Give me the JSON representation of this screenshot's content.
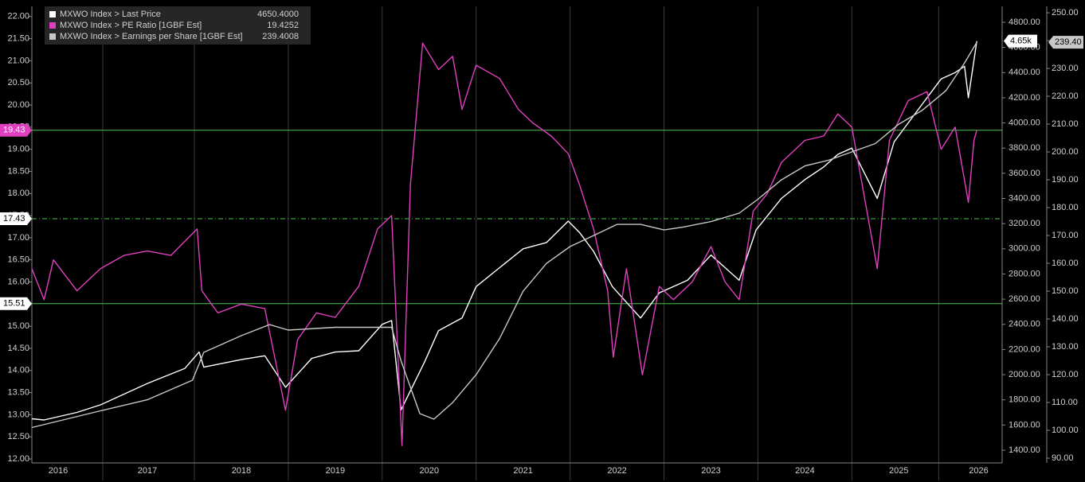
{
  "chart_data": {
    "type": "line",
    "xlim": [
      2016.27,
      2026.6
    ],
    "xticks": [
      {
        "value": 2016.55,
        "label": "2016"
      },
      {
        "value": 2017.5,
        "label": "2017"
      },
      {
        "value": 2018.5,
        "label": "2018"
      },
      {
        "value": 2019.5,
        "label": "2019"
      },
      {
        "value": 2020.5,
        "label": "2020"
      },
      {
        "value": 2021.5,
        "label": "2021"
      },
      {
        "value": 2022.5,
        "label": "2022"
      },
      {
        "value": 2023.5,
        "label": "2023"
      },
      {
        "value": 2024.5,
        "label": "2024"
      },
      {
        "value": 2025.5,
        "label": "2025"
      },
      {
        "value": 2026.35,
        "label": "2026"
      }
    ],
    "ylim": [
      11.91,
      22.23
    ],
    "yticks": [
      {
        "value": 12,
        "label": "12.00"
      },
      {
        "value": 12.5,
        "label": "12.50"
      },
      {
        "value": 13,
        "label": "13.00"
      },
      {
        "value": 13.5,
        "label": "13.50"
      },
      {
        "value": 14,
        "label": "14.00"
      },
      {
        "value": 14.5,
        "label": "14.50"
      },
      {
        "value": 15,
        "label": "15.00"
      },
      {
        "value": 15.5,
        "label": "15.50"
      },
      {
        "value": 16,
        "label": "16.00"
      },
      {
        "value": 16.5,
        "label": "16.50"
      },
      {
        "value": 17,
        "label": "17.00"
      },
      {
        "value": 17.5,
        "label": "17.50"
      },
      {
        "value": 18,
        "label": "18.00"
      },
      {
        "value": 18.5,
        "label": "18.50"
      },
      {
        "value": 19,
        "label": "19.00"
      },
      {
        "value": 19.5,
        "label": "19.50"
      },
      {
        "value": 20,
        "label": "20.00"
      },
      {
        "value": 20.5,
        "label": "20.50"
      },
      {
        "value": 21,
        "label": "21.00"
      },
      {
        "value": 21.5,
        "label": "21.50"
      },
      {
        "value": 22,
        "label": "22.00"
      }
    ],
    "y2lim": [
      1299,
      4926
    ],
    "y2ticks": [
      {
        "value": 1400,
        "label": "1400.00"
      },
      {
        "value": 1600,
        "label": "1600.00"
      },
      {
        "value": 1800,
        "label": "1800.00"
      },
      {
        "value": 2000,
        "label": "2000.00"
      },
      {
        "value": 2200,
        "label": "2200.00"
      },
      {
        "value": 2400,
        "label": "2400.00"
      },
      {
        "value": 2600,
        "label": "2600.00"
      },
      {
        "value": 2800,
        "label": "2800.00"
      },
      {
        "value": 3000,
        "label": "3000.00"
      },
      {
        "value": 3200,
        "label": "3200.00"
      },
      {
        "value": 3400,
        "label": "3400.00"
      },
      {
        "value": 3600,
        "label": "3600.00"
      },
      {
        "value": 3800,
        "label": "3800.00"
      },
      {
        "value": 4000,
        "label": "4000.00"
      },
      {
        "value": 4200,
        "label": "4200.00"
      },
      {
        "value": 4400,
        "label": "4400.00"
      },
      {
        "value": 4600,
        "label": "4600.00"
      },
      {
        "value": 4800,
        "label": "4800.00"
      }
    ],
    "y3lim": [
      88.3,
      252.3
    ],
    "y3ticks": [
      {
        "value": 90,
        "label": "90.00"
      },
      {
        "value": 100,
        "label": "100.00"
      },
      {
        "value": 110,
        "label": "110.00"
      },
      {
        "value": 120,
        "label": "120.00"
      },
      {
        "value": 130,
        "label": "130.00"
      },
      {
        "value": 140,
        "label": "140.00"
      },
      {
        "value": 150,
        "label": "150.00"
      },
      {
        "value": 160,
        "label": "160.00"
      },
      {
        "value": 170,
        "label": "170.00"
      },
      {
        "value": 180,
        "label": "180.00"
      },
      {
        "value": 190,
        "label": "190.00"
      },
      {
        "value": 200,
        "label": "200.00"
      },
      {
        "value": 210,
        "label": "210.00"
      },
      {
        "value": 220,
        "label": "220.00"
      },
      {
        "value": 230,
        "label": "230.00"
      },
      {
        "value": 240,
        "label": "240.00"
      },
      {
        "value": 250,
        "label": "250.00"
      }
    ],
    "hlines": [
      {
        "value": 19.43,
        "label": "19.43",
        "color": "#4cc44c",
        "style": "solid",
        "box_color": "#e040c0"
      },
      {
        "value": 17.43,
        "label": "17.43",
        "color": "#4cc44c",
        "style": "dashdot",
        "box_color": "#ffffff"
      },
      {
        "value": 15.51,
        "label": "15.51",
        "color": "#4cc44c",
        "style": "solid",
        "box_color": "#ffffff"
      }
    ],
    "series": [
      {
        "name": "MXWO Index > Last Price",
        "legend_value": "4650.4000",
        "color": "#ffffff",
        "axis": "y2",
        "end_label": "4.65k",
        "x": [
          2016.27,
          2016.4,
          2016.75,
          2017.0,
          2017.5,
          2017.9,
          2018.05,
          2018.1,
          2018.5,
          2018.75,
          2018.97,
          2019.25,
          2019.5,
          2019.75,
          2020.0,
          2020.1,
          2020.2,
          2020.45,
          2020.6,
          2020.85,
          2021.0,
          2021.25,
          2021.5,
          2021.75,
          2021.98,
          2022.1,
          2022.25,
          2022.45,
          2022.75,
          2022.95,
          2023.25,
          2023.5,
          2023.65,
          2023.8,
          2023.98,
          2024.25,
          2024.5,
          2024.7,
          2024.85,
          2025.0,
          2025.27,
          2025.45,
          2025.6,
          2025.8,
          2025.95,
          2026.1,
          2026.2,
          2026.24,
          2026.33
        ],
        "values": [
          1650,
          1640,
          1700,
          1760,
          1930,
          2050,
          2180,
          2060,
          2120,
          2150,
          1900,
          2130,
          2180,
          2190,
          2400,
          2430,
          1720,
          2100,
          2350,
          2450,
          2700,
          2850,
          3000,
          3050,
          3220,
          3130,
          2980,
          2700,
          2450,
          2650,
          2750,
          2950,
          2850,
          2750,
          3150,
          3400,
          3550,
          3650,
          3750,
          3800,
          3400,
          3850,
          4000,
          4200,
          4350,
          4400,
          4450,
          4200,
          4650
        ]
      },
      {
        "name": "MXWO Index > PE Ratio [1GBF Est]",
        "legend_value": "19.4252",
        "color": "#e040c0",
        "axis": "y",
        "x": [
          2016.27,
          2016.4,
          2016.5,
          2016.75,
          2017.0,
          2017.25,
          2017.5,
          2017.75,
          2018.03,
          2018.08,
          2018.25,
          2018.5,
          2018.75,
          2018.97,
          2019.1,
          2019.3,
          2019.5,
          2019.75,
          2019.95,
          2020.1,
          2020.21,
          2020.3,
          2020.43,
          2020.6,
          2020.75,
          2020.85,
          2021.0,
          2021.25,
          2021.45,
          2021.6,
          2021.8,
          2021.98,
          2022.1,
          2022.25,
          2022.4,
          2022.46,
          2022.6,
          2022.77,
          2022.95,
          2023.1,
          2023.3,
          2023.5,
          2023.65,
          2023.8,
          2023.95,
          2024.1,
          2024.25,
          2024.5,
          2024.7,
          2024.85,
          2025.0,
          2025.27,
          2025.4,
          2025.6,
          2025.8,
          2025.95,
          2026.1,
          2026.24,
          2026.3,
          2026.33
        ],
        "values": [
          16.3,
          15.6,
          16.5,
          15.8,
          16.3,
          16.6,
          16.7,
          16.6,
          17.2,
          15.8,
          15.3,
          15.5,
          15.4,
          13.1,
          14.7,
          15.3,
          15.2,
          15.9,
          17.2,
          17.5,
          12.3,
          18.2,
          21.4,
          20.8,
          21.1,
          19.9,
          20.9,
          20.6,
          19.9,
          19.6,
          19.3,
          18.9,
          18.2,
          17.2,
          15.8,
          14.3,
          16.3,
          13.9,
          15.9,
          15.6,
          16.0,
          16.8,
          16.0,
          15.6,
          17.6,
          18.0,
          18.7,
          19.2,
          19.3,
          19.8,
          19.5,
          16.3,
          19.2,
          20.1,
          20.3,
          19.0,
          19.5,
          17.8,
          19.2,
          19.43
        ]
      },
      {
        "name": "MXWO Index > Earnings per Share [1GBF Est]",
        "legend_value": "239.4008",
        "color": "#c8c8c8",
        "axis": "y3",
        "end_label": "239.40",
        "x": [
          2016.27,
          2017.0,
          2017.5,
          2017.98,
          2018.1,
          2018.5,
          2018.8,
          2019.0,
          2019.5,
          2019.95,
          2020.1,
          2020.2,
          2020.4,
          2020.55,
          2020.75,
          2021.0,
          2021.25,
          2021.5,
          2021.75,
          2022.0,
          2022.25,
          2022.5,
          2022.75,
          2023.0,
          2023.2,
          2023.5,
          2023.8,
          2024.0,
          2024.25,
          2024.5,
          2024.75,
          2025.0,
          2025.25,
          2025.5,
          2025.75,
          2026.0,
          2026.2,
          2026.33
        ],
        "values": [
          101,
          107,
          111,
          118,
          128,
          134,
          138,
          136,
          137,
          137,
          137,
          125,
          106,
          104,
          110,
          120,
          133,
          150,
          160,
          166,
          170,
          174,
          174,
          172,
          173,
          175,
          178,
          183,
          190,
          195,
          197,
          200,
          203,
          210,
          215,
          222,
          232,
          239.4
        ]
      }
    ]
  }
}
